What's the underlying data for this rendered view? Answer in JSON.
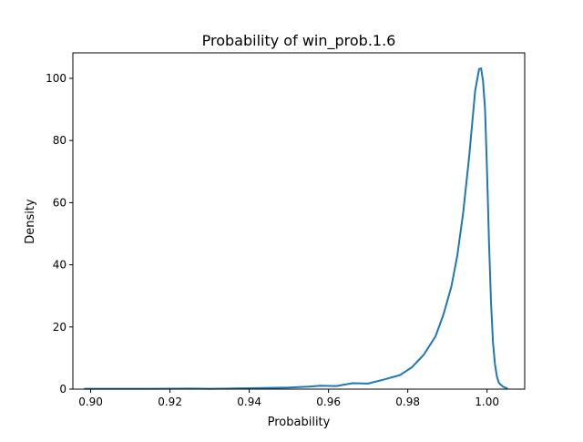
{
  "chart_data": {
    "type": "line",
    "title": "Probability of win_prob.1.6",
    "xlabel": "Probability",
    "ylabel": "Density",
    "xlim": [
      0.8955,
      1.0095
    ],
    "ylim": [
      0,
      108.2
    ],
    "xticks": [
      0.9,
      0.92,
      0.94,
      0.96,
      0.98,
      1.0
    ],
    "xtick_labels": [
      "0.90",
      "0.92",
      "0.94",
      "0.96",
      "0.98",
      "1.00"
    ],
    "yticks": [
      0,
      20,
      40,
      60,
      80,
      100
    ],
    "ytick_labels": [
      "0",
      "20",
      "40",
      "60",
      "80",
      "100"
    ],
    "grid": false,
    "series": [
      {
        "color": "#1f77b4",
        "x": [
          0.8985,
          0.905,
          0.915,
          0.925,
          0.93,
          0.935,
          0.94,
          0.945,
          0.95,
          0.955,
          0.958,
          0.962,
          0.966,
          0.97,
          0.974,
          0.978,
          0.981,
          0.984,
          0.987,
          0.989,
          0.991,
          0.9925,
          0.994,
          0.9955,
          0.997,
          0.998,
          0.9985,
          0.999,
          0.9995,
          1.0,
          1.0005,
          1.001,
          1.0015,
          1.002,
          1.0025,
          1.003,
          1.004,
          1.005
        ],
        "y": [
          0.1,
          0.1,
          0.1,
          0.2,
          0.1,
          0.2,
          0.3,
          0.4,
          0.5,
          0.8,
          1.1,
          1.0,
          1.9,
          1.8,
          3.1,
          4.5,
          7.0,
          11.0,
          17.0,
          24.0,
          33.0,
          43.0,
          57.0,
          75.0,
          96.0,
          103.0,
          103.2,
          99.0,
          90.0,
          70.0,
          47.0,
          28.0,
          15.0,
          8.0,
          4.0,
          2.0,
          0.8,
          0.3
        ]
      }
    ]
  }
}
